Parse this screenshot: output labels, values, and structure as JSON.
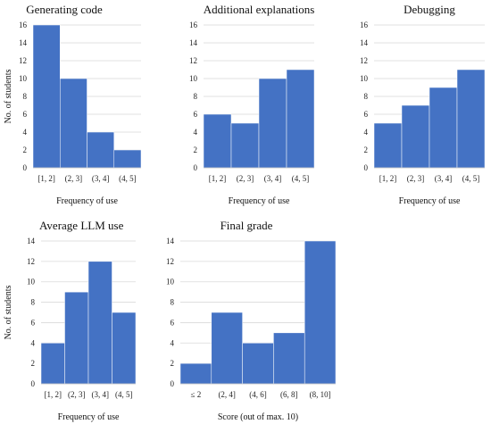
{
  "chart_data": [
    {
      "type": "bar",
      "title": "Generating code",
      "xlabel": "Frequency of use",
      "ylabel": "No. of students",
      "categories": [
        "[1, 2]",
        "(2, 3]",
        "(3, 4]",
        "(4, 5]"
      ],
      "values": [
        16,
        10,
        4,
        2
      ],
      "ylim": [
        0,
        16
      ],
      "yticks": [
        0,
        2,
        4,
        6,
        8,
        10,
        12,
        14,
        16
      ],
      "color": "#4472C4"
    },
    {
      "type": "bar",
      "title": "Additional explanations",
      "xlabel": "Frequency of use",
      "ylabel": "",
      "categories": [
        "[1, 2]",
        "(2, 3]",
        "(3, 4]",
        "(4, 5]"
      ],
      "values": [
        6,
        5,
        10,
        11
      ],
      "ylim": [
        0,
        16
      ],
      "yticks": [
        0,
        2,
        4,
        6,
        8,
        10,
        12,
        14,
        16
      ],
      "color": "#4472C4"
    },
    {
      "type": "bar",
      "title": "Debugging",
      "xlabel": "Frequency of use",
      "ylabel": "",
      "categories": [
        "[1, 2]",
        "(2, 3]",
        "(3, 4]",
        "(4, 5]"
      ],
      "values": [
        5,
        7,
        9,
        11
      ],
      "ylim": [
        0,
        16
      ],
      "yticks": [
        0,
        2,
        4,
        6,
        8,
        10,
        12,
        14,
        16
      ],
      "color": "#4472C4"
    },
    {
      "type": "bar",
      "title": "Average LLM use",
      "xlabel": "Frequency of use",
      "ylabel": "No. of students",
      "categories": [
        "[1, 2]",
        "(2, 3]",
        "(3, 4]",
        "(4, 5]"
      ],
      "values": [
        4,
        9,
        12,
        7
      ],
      "ylim": [
        0,
        14
      ],
      "yticks": [
        0,
        2,
        4,
        6,
        8,
        10,
        12,
        14
      ],
      "color": "#4472C4"
    },
    {
      "type": "bar",
      "title": "Final grade",
      "xlabel": "Score (out of max. 10)",
      "ylabel": "",
      "categories": [
        "≤ 2",
        "(2, 4]",
        "(4, 6]",
        "(6, 8]",
        "(8, 10]"
      ],
      "values": [
        2,
        7,
        4,
        5,
        14
      ],
      "ylim": [
        0,
        14
      ],
      "yticks": [
        0,
        2,
        4,
        6,
        8,
        10,
        12,
        14
      ],
      "color": "#4472C4"
    }
  ]
}
